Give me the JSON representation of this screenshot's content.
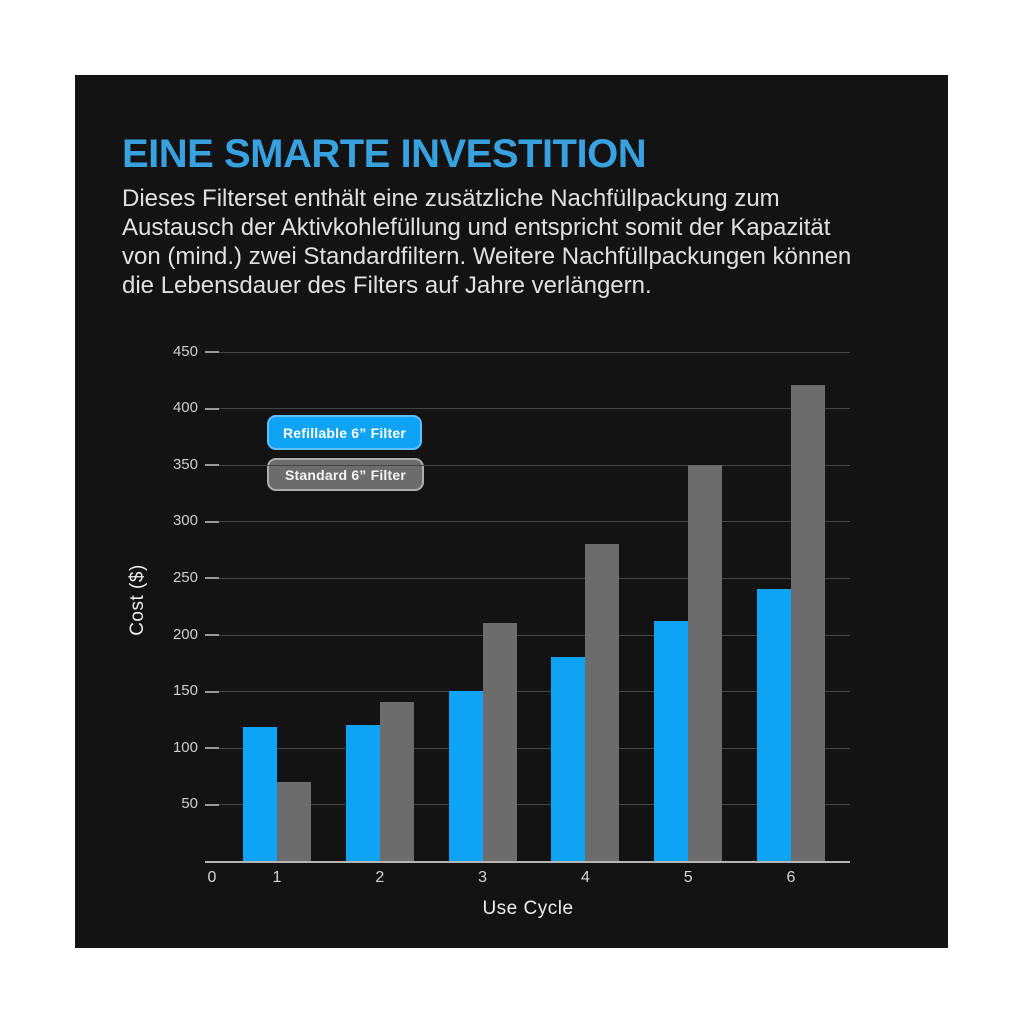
{
  "page": {
    "background_color": "#ffffff",
    "panel_color": "#131313"
  },
  "header": {
    "title": "EINE SMARTE INVESTITION",
    "title_color": "#38A1DF",
    "paragraph_lines": [
      "Dieses Filterset enthält eine zusätzliche Nachfüllpackung zum",
      "Austausch der Aktivkohlefüllung und entspricht somit der Kapazität",
      "von (mind.) zwei Standardfiltern. Weitere Nachfüllpackungen können",
      "die Lebensdauer des Filters auf Jahre verlängern."
    ]
  },
  "chart_data": {
    "type": "bar",
    "title": "",
    "xlabel": "Use Cycle",
    "ylabel": "Cost ($)",
    "x_axis_origin_label": "0",
    "categories": [
      "1",
      "2",
      "3",
      "4",
      "5",
      "6"
    ],
    "series": [
      {
        "name": "Refillable 6” Filter",
        "color": "#0FA3F5",
        "values": [
          118,
          120,
          150,
          180,
          212,
          240
        ]
      },
      {
        "name": "Standard 6” Filter",
        "color": "#6C6C6C",
        "values": [
          70,
          140,
          210,
          280,
          350,
          420
        ]
      }
    ],
    "ylim": [
      0,
      450
    ],
    "yticks": [
      50,
      100,
      150,
      200,
      250,
      300,
      350,
      400,
      450
    ],
    "grid": true,
    "gridline_color": "#454545",
    "legend_position": "upper-left-inside",
    "legend_entries": [
      "Refillable 6” Filter",
      "Standard 6” Filter"
    ]
  }
}
